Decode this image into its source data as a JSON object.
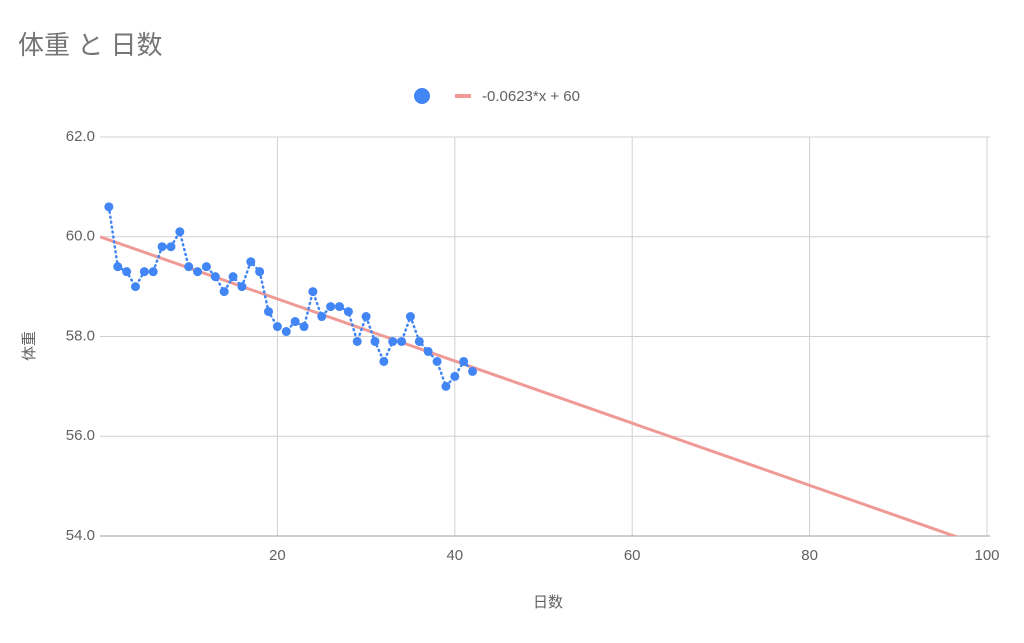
{
  "chart_data": {
    "type": "scatter",
    "title": "体重 と 日数",
    "x_label": "日数",
    "y_label": "体重",
    "x": [
      1,
      2,
      3,
      4,
      5,
      6,
      7,
      8,
      9,
      10,
      11,
      12,
      13,
      14,
      15,
      16,
      17,
      18,
      19,
      20,
      21,
      22,
      23,
      24,
      25,
      26,
      27,
      28,
      29,
      30,
      31,
      32,
      33,
      34,
      35,
      36,
      37,
      38,
      39,
      40,
      41,
      42
    ],
    "series": [
      {
        "color": "#4285f4",
        "line_style": "dotted",
        "values": [
          60.6,
          59.4,
          59.3,
          59.0,
          59.3,
          59.3,
          59.8,
          59.8,
          60.1,
          59.4,
          59.3,
          59.4,
          59.2,
          58.9,
          59.2,
          59.0,
          59.5,
          59.3,
          58.5,
          58.2,
          58.1,
          58.3,
          58.2,
          58.9,
          58.4,
          58.6,
          58.6,
          58.5,
          57.9,
          58.4,
          57.9,
          57.5,
          57.9,
          57.9,
          58.4,
          57.9,
          57.7,
          57.5,
          57.0,
          57.2,
          57.5,
          57.3
        ]
      }
    ],
    "trendline": {
      "name": "-0.0623*x + 60",
      "slope": -0.0623,
      "intercept": 60,
      "color": "#f09a96"
    },
    "xlim": [
      0,
      100
    ],
    "xticks": [
      20,
      40,
      60,
      80,
      100
    ],
    "ylim": [
      54,
      62
    ],
    "yticks": [
      {
        "value": 54,
        "label": "54.0"
      },
      {
        "value": 56,
        "label": "56.0"
      },
      {
        "value": 58,
        "label": "58.0"
      },
      {
        "value": 60,
        "label": "60.0"
      },
      {
        "value": 62,
        "label": "62.0"
      }
    ],
    "grid": true,
    "legend": "top"
  }
}
